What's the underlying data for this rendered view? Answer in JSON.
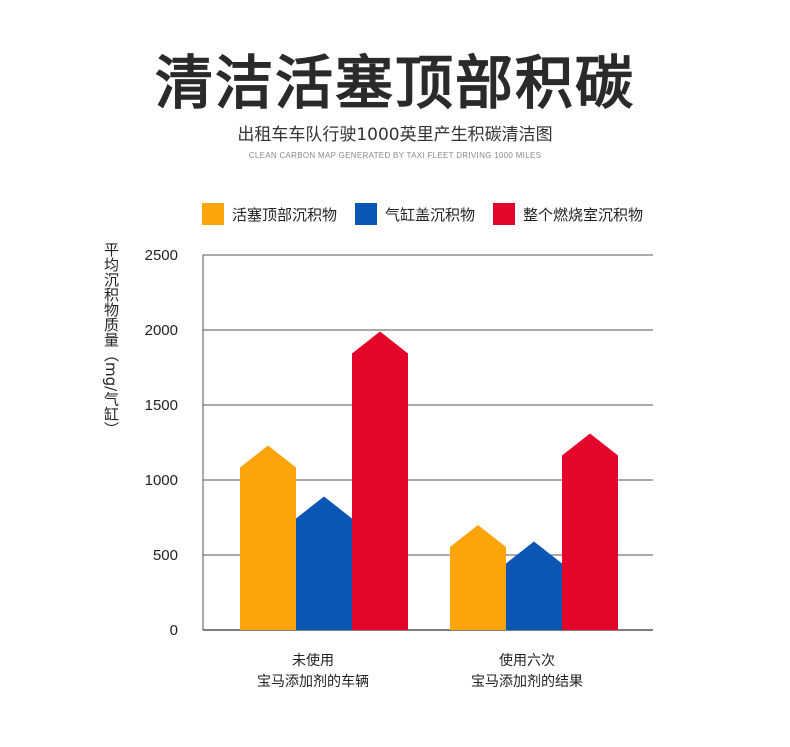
{
  "header": {
    "title": "清洁活塞顶部积碳",
    "subtitle": "出租车车队行驶1000英里产生积碳清洁图",
    "subtitle_en": "CLEAN CARBON MAP GENERATED BY TAXI FLEET DRIVING 1000 MILES"
  },
  "colors": {
    "orange": "#FBA50A",
    "blue": "#0B56B4",
    "red": "#E3062A",
    "grid": "#555555",
    "text": "#222222"
  },
  "legend": [
    {
      "label": "活塞顶部沉积物",
      "color": "#FBA50A"
    },
    {
      "label": "气缸盖沉积物",
      "color": "#0B56B4"
    },
    {
      "label": "整个燃烧室沉积物",
      "color": "#E3062A"
    }
  ],
  "chart_data": {
    "type": "bar",
    "title": "清洁活塞顶部积碳",
    "ylabel": "平均沉积物质量（mg/气缸）",
    "xlabel": "",
    "ylim": [
      0,
      2500
    ],
    "yticks": [
      0,
      500,
      1000,
      1500,
      2000,
      2500
    ],
    "grid": true,
    "legend_position": "top",
    "categories": [
      [
        "未使用",
        "宝马添加剂的车辆"
      ],
      [
        "使用六次",
        "宝马添加剂的结果"
      ]
    ],
    "series": [
      {
        "name": "活塞顶部沉积物",
        "color": "#FBA50A",
        "values": [
          1230,
          700
        ]
      },
      {
        "name": "气缸盖沉积物",
        "color": "#0B56B4",
        "values": [
          890,
          590
        ]
      },
      {
        "name": "整个燃烧室沉积物",
        "color": "#E3062A",
        "values": [
          1990,
          1310
        ]
      }
    ]
  }
}
